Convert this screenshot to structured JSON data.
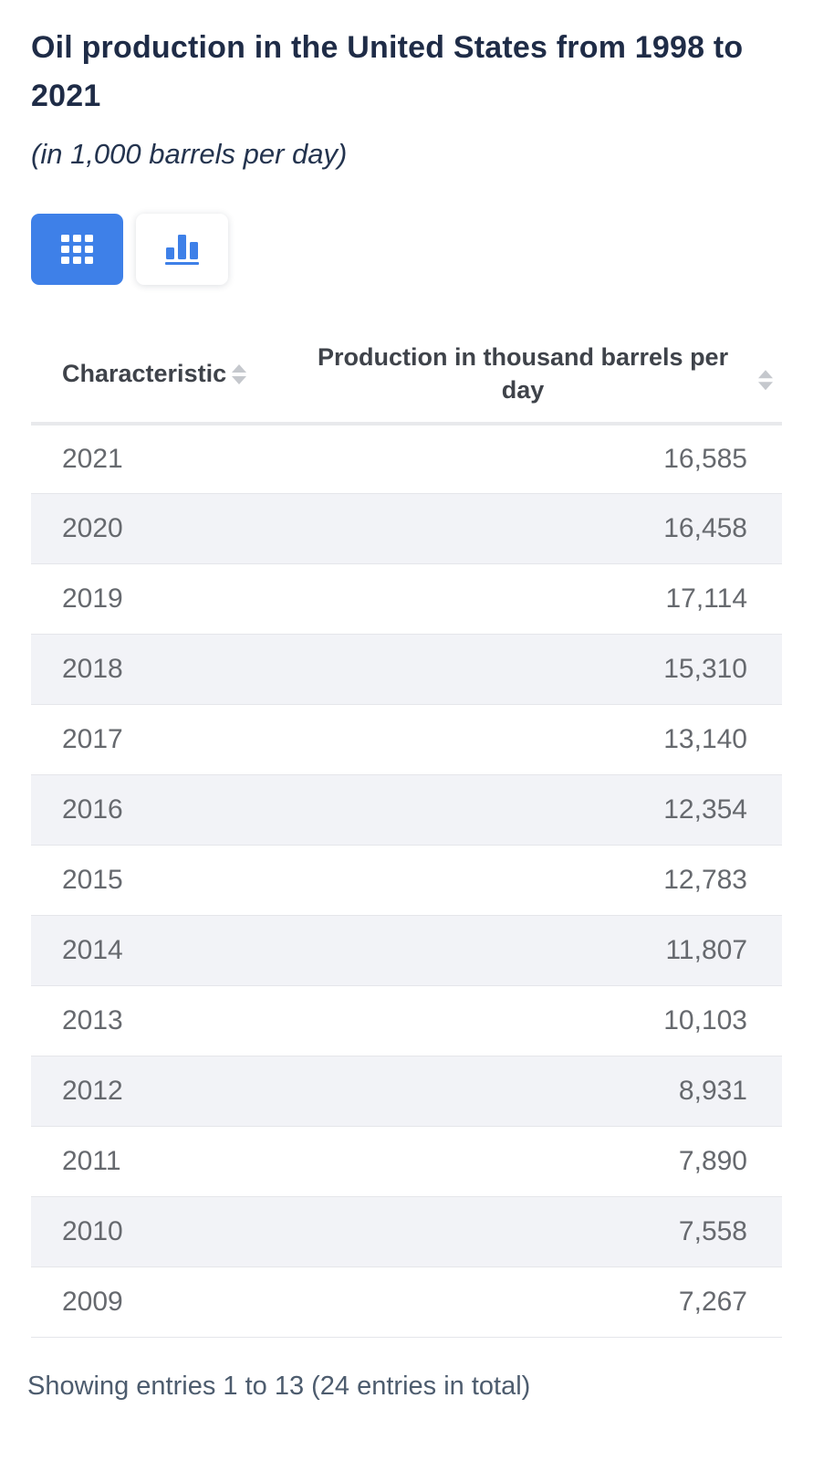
{
  "page": {
    "title": "Oil production in the United States from 1998 to 2021",
    "subtitle": "(in 1,000 barrels per day)",
    "entries_summary": "Showing entries 1 to 13 (24 entries in total)"
  },
  "toolbar": {
    "table_view_button": {
      "icon": "grid-icon",
      "active": true
    },
    "chart_view_button": {
      "icon": "bar-chart-icon",
      "active": false
    }
  },
  "colors": {
    "accent_blue": "#3e80e8",
    "title_navy": "#1f2c47",
    "header_text": "#3f434a",
    "row_text": "#66696e",
    "stripe_bg": "#f2f3f7",
    "row_border": "#e5e6ea",
    "sort_icon": "#c5c8cd",
    "footer_text": "#4d5c6e"
  },
  "table": {
    "columns": [
      {
        "label": "Characteristic",
        "sortable": true
      },
      {
        "label": "Production in thousand barrels per day",
        "sortable": true
      }
    ],
    "rows": [
      {
        "characteristic": "2021",
        "value": "16,585"
      },
      {
        "characteristic": "2020",
        "value": "16,458"
      },
      {
        "characteristic": "2019",
        "value": "17,114"
      },
      {
        "characteristic": "2018",
        "value": "15,310"
      },
      {
        "characteristic": "2017",
        "value": "13,140"
      },
      {
        "characteristic": "2016",
        "value": "12,354"
      },
      {
        "characteristic": "2015",
        "value": "12,783"
      },
      {
        "characteristic": "2014",
        "value": "11,807"
      },
      {
        "characteristic": "2013",
        "value": "10,103"
      },
      {
        "characteristic": "2012",
        "value": "8,931"
      },
      {
        "characteristic": "2011",
        "value": "7,890"
      },
      {
        "characteristic": "2010",
        "value": "7,558"
      },
      {
        "characteristic": "2009",
        "value": "7,267"
      }
    ]
  },
  "chart_data": {
    "type": "table",
    "title": "Oil production in the United States from 1998 to 2021",
    "subtitle": "(in 1,000 barrels per day)",
    "categories": [
      "2021",
      "2020",
      "2019",
      "2018",
      "2017",
      "2016",
      "2015",
      "2014",
      "2013",
      "2012",
      "2011",
      "2010",
      "2009"
    ],
    "values": [
      16585,
      16458,
      17114,
      15310,
      13140,
      12354,
      12783,
      11807,
      10103,
      8931,
      7890,
      7558,
      7267
    ],
    "ylabel": "Production in thousand barrels per day"
  }
}
